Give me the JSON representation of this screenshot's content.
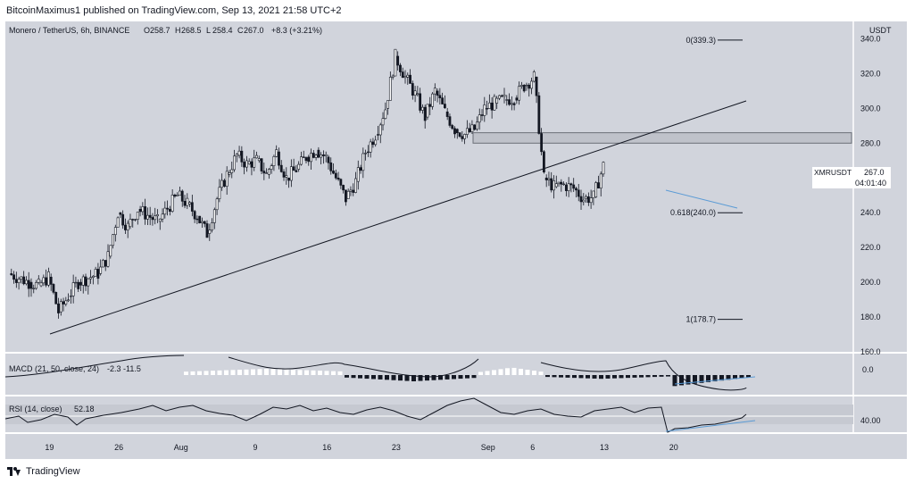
{
  "header": {
    "publish_line": "BitcoinMaximus1 published on TradingView.com, Sep 13, 2021 21:58 UTC+2"
  },
  "legend": {
    "pair": "Monero / TetherUS, 6h, BINANCE",
    "o_label": "O",
    "o_value": "258.7",
    "h_label": "H",
    "h_value": "268.5",
    "l_label": "L",
    "l_value": "258.4",
    "c_label": "C",
    "c_value": "267.0",
    "change": "+8.3 (+3.21%)"
  },
  "footer": {
    "brand": "TradingView"
  },
  "colors": {
    "panel_bg": "#d1d4dc",
    "candle": "#131722",
    "trendline": "#131722",
    "blue_line": "#5b9bd5",
    "zone": "#bfc2ca"
  },
  "chart_data": {
    "type": "candlestick",
    "title": "Monero / TetherUS, 6h, BINANCE",
    "ylabel": "USDT",
    "y_axis_unit": "USDT",
    "ylim": [
      160,
      350
    ],
    "y_ticks": [
      "340.0",
      "320.0",
      "300.0",
      "280.0",
      "260.0",
      "240.0",
      "220.0",
      "200.0",
      "180.0",
      "160.0"
    ],
    "x_axis_labels": [
      "19",
      "26",
      "Aug",
      "9",
      "16",
      "23",
      "Sep",
      "6",
      "13",
      "20"
    ],
    "price_label": {
      "symbol": "XMRUSDT",
      "price": "267.0",
      "countdown": "04:01:40"
    },
    "fib_levels": [
      {
        "label": "0(339.3)",
        "value": 339.3
      },
      {
        "label": "0.618(240.0)",
        "value": 240.0
      },
      {
        "label": "1(178.7)",
        "value": 178.7
      }
    ],
    "resistance_zone": [
      280,
      286
    ],
    "ascending_support": {
      "from": [
        "Jul 20",
        174
      ],
      "to": [
        "Sep 13",
        309
      ]
    },
    "close_series": [
      {
        "x": "Jul 15",
        "y": 205
      },
      {
        "x": "Jul 17",
        "y": 200
      },
      {
        "x": "Jul 18",
        "y": 198
      },
      {
        "x": "Jul 19",
        "y": 203
      },
      {
        "x": "Jul 20",
        "y": 183
      },
      {
        "x": "Jul 21",
        "y": 192
      },
      {
        "x": "Jul 22",
        "y": 200
      },
      {
        "x": "Jul 24",
        "y": 205
      },
      {
        "x": "Jul 25",
        "y": 215
      },
      {
        "x": "Jul 26",
        "y": 240
      },
      {
        "x": "Jul 27",
        "y": 232
      },
      {
        "x": "Jul 28",
        "y": 242
      },
      {
        "x": "Jul 30",
        "y": 235
      },
      {
        "x": "Aug 1",
        "y": 250
      },
      {
        "x": "Aug 2",
        "y": 245
      },
      {
        "x": "Aug 3",
        "y": 238
      },
      {
        "x": "Aug 4",
        "y": 228
      },
      {
        "x": "Aug 5",
        "y": 248
      },
      {
        "x": "Aug 6",
        "y": 262
      },
      {
        "x": "Aug 7",
        "y": 273
      },
      {
        "x": "Aug 8",
        "y": 268
      },
      {
        "x": "Aug 9",
        "y": 270
      },
      {
        "x": "Aug 10",
        "y": 262
      },
      {
        "x": "Aug 11",
        "y": 275
      },
      {
        "x": "Aug 12",
        "y": 260
      },
      {
        "x": "Aug 13",
        "y": 265
      },
      {
        "x": "Aug 14",
        "y": 272
      },
      {
        "x": "Aug 15",
        "y": 276
      },
      {
        "x": "Aug 16",
        "y": 272
      },
      {
        "x": "Aug 17",
        "y": 260
      },
      {
        "x": "Aug 18",
        "y": 248
      },
      {
        "x": "Aug 19",
        "y": 258
      },
      {
        "x": "Aug 20",
        "y": 275
      },
      {
        "x": "Aug 21",
        "y": 285
      },
      {
        "x": "Aug 22",
        "y": 300
      },
      {
        "x": "Aug 23",
        "y": 330
      },
      {
        "x": "Aug 24",
        "y": 318
      },
      {
        "x": "Aug 25",
        "y": 308
      },
      {
        "x": "Aug 26",
        "y": 295
      },
      {
        "x": "Aug 27",
        "y": 310
      },
      {
        "x": "Aug 28",
        "y": 298
      },
      {
        "x": "Aug 29",
        "y": 288
      },
      {
        "x": "Aug 30",
        "y": 285
      },
      {
        "x": "Aug 31",
        "y": 288
      },
      {
        "x": "Sep 1",
        "y": 300
      },
      {
        "x": "Sep 2",
        "y": 303
      },
      {
        "x": "Sep 3",
        "y": 305
      },
      {
        "x": "Sep 4",
        "y": 306
      },
      {
        "x": "Sep 5",
        "y": 313
      },
      {
        "x": "Sep 6",
        "y": 318
      },
      {
        "x": "Sep 7",
        "y": 260
      },
      {
        "x": "Sep 8",
        "y": 255
      },
      {
        "x": "Sep 9",
        "y": 256
      },
      {
        "x": "Sep 10",
        "y": 254
      },
      {
        "x": "Sep 11",
        "y": 248
      },
      {
        "x": "Sep 12",
        "y": 249
      },
      {
        "x": "Sep 13",
        "y": 267
      }
    ],
    "macd": {
      "label": "MACD (21, 50, close, 24)",
      "values": "-2.3  -11.5",
      "y_ticks": [
        "0.0"
      ]
    },
    "rsi": {
      "label": "RSI (14, close)",
      "value": "52.18",
      "y_ticks": [
        "40.00"
      ]
    },
    "grid": false
  }
}
